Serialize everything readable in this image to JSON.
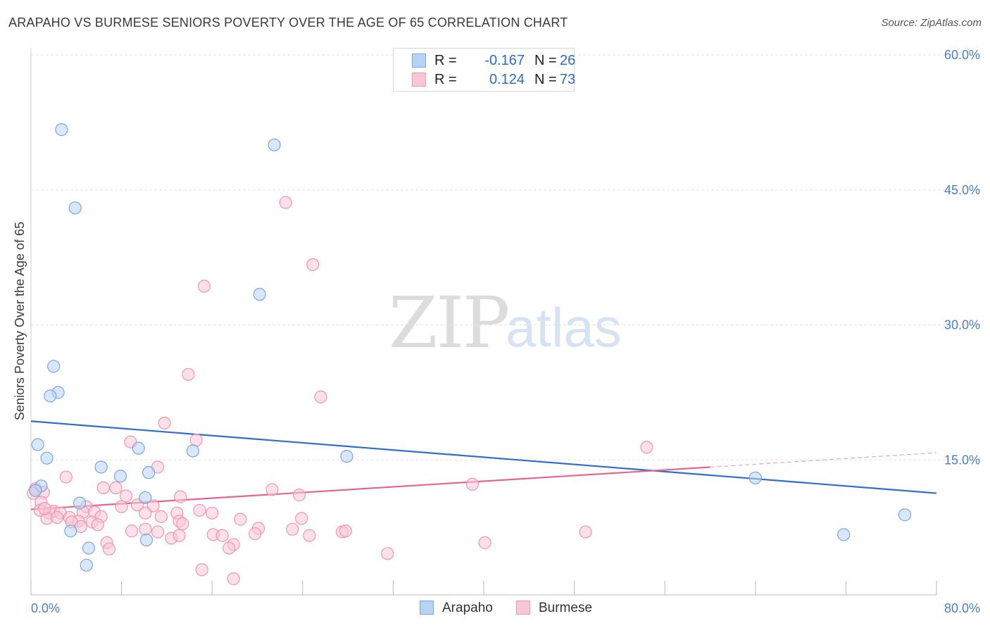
{
  "title": "ARAPAHO VS BURMESE SENIORS POVERTY OVER THE AGE OF 65 CORRELATION CHART",
  "source": "Source: ZipAtlas.com",
  "watermark": {
    "zip": "ZIP",
    "atlas": "atlas"
  },
  "legend": {
    "rows": [
      {
        "r_label": "R =",
        "r_value": "-0.167",
        "n_label": "N =",
        "n_value": "26",
        "color": "#b8d4f5",
        "border": "#7aa6df"
      },
      {
        "r_label": "R =",
        "r_value": "0.124",
        "n_label": "N =",
        "n_value": "73",
        "color": "#fbc6d6",
        "border": "#ee94b2"
      }
    ]
  },
  "bottom_legend": [
    {
      "name": "Arapaho",
      "color": "#b8d4f5",
      "border": "#7aa6df"
    },
    {
      "name": "Burmese",
      "color": "#fbc6d6",
      "border": "#ee94b2"
    }
  ],
  "chart_data": {
    "type": "scatter",
    "title": "ARAPAHO VS BURMESE SENIORS POVERTY OVER THE AGE OF 65 CORRELATION CHART",
    "xlabel": "",
    "ylabel": "Seniors Poverty Over the Age of 65",
    "xlim": [
      0,
      80
    ],
    "ylim": [
      0,
      60
    ],
    "x_tick_labels": [
      "0.0%",
      "80.0%"
    ],
    "y_ticks": [
      15,
      30,
      45,
      60
    ],
    "y_tick_labels": [
      "15.0%",
      "30.0%",
      "45.0%",
      "60.0%"
    ],
    "grid": true,
    "legend_position": "top-center",
    "series": [
      {
        "name": "Arapaho",
        "color": "#7aa6df",
        "fill": "#b8d4f5",
        "trend_color": "#2f6fca",
        "trend": {
          "x": [
            0,
            80
          ],
          "y": [
            19.3,
            11.3
          ]
        },
        "points": [
          [
            2.7,
            51.7
          ],
          [
            21.5,
            50.0
          ],
          [
            3.9,
            43.0
          ],
          [
            20.2,
            33.4
          ],
          [
            2.0,
            25.4
          ],
          [
            2.4,
            22.5
          ],
          [
            1.7,
            22.1
          ],
          [
            0.6,
            16.7
          ],
          [
            1.4,
            15.2
          ],
          [
            9.5,
            16.3
          ],
          [
            14.3,
            16.0
          ],
          [
            27.9,
            15.4
          ],
          [
            6.2,
            14.2
          ],
          [
            7.9,
            13.2
          ],
          [
            10.4,
            13.6
          ],
          [
            0.9,
            12.1
          ],
          [
            0.4,
            11.6
          ],
          [
            10.1,
            10.8
          ],
          [
            4.3,
            10.2
          ],
          [
            3.5,
            7.1
          ],
          [
            10.2,
            6.1
          ],
          [
            5.1,
            5.2
          ],
          [
            4.9,
            3.3
          ],
          [
            64.0,
            13.0
          ],
          [
            71.8,
            6.7
          ],
          [
            77.2,
            8.9
          ]
        ]
      },
      {
        "name": "Burmese",
        "color": "#ee94b2",
        "fill": "#fbc6d6",
        "trend_color": "#e2688f",
        "trend": {
          "x": [
            0,
            60
          ],
          "y": [
            9.5,
            14.2
          ]
        },
        "trend_extension": {
          "x": [
            60,
            80
          ],
          "y": [
            14.2,
            15.8
          ]
        },
        "points": [
          [
            22.5,
            43.6
          ],
          [
            24.9,
            36.7
          ],
          [
            15.3,
            34.3
          ],
          [
            13.9,
            24.5
          ],
          [
            25.6,
            22.0
          ],
          [
            11.8,
            19.1
          ],
          [
            14.6,
            17.2
          ],
          [
            8.8,
            17.0
          ],
          [
            54.4,
            16.4
          ],
          [
            11.2,
            14.2
          ],
          [
            3.1,
            13.1
          ],
          [
            0.4,
            11.8
          ],
          [
            1.1,
            11.4
          ],
          [
            6.4,
            11.9
          ],
          [
            7.5,
            11.9
          ],
          [
            21.3,
            11.7
          ],
          [
            8.4,
            11.0
          ],
          [
            13.2,
            10.9
          ],
          [
            23.7,
            11.1
          ],
          [
            39.0,
            12.3
          ],
          [
            0.9,
            10.3
          ],
          [
            8.0,
            9.8
          ],
          [
            9.4,
            10.0
          ],
          [
            10.8,
            9.9
          ],
          [
            4.9,
            9.8
          ],
          [
            0.8,
            9.4
          ],
          [
            1.6,
            9.1
          ],
          [
            2.0,
            9.3
          ],
          [
            2.6,
            9.1
          ],
          [
            4.6,
            9.2
          ],
          [
            5.6,
            9.2
          ],
          [
            10.1,
            9.1
          ],
          [
            12.9,
            9.1
          ],
          [
            14.9,
            9.4
          ],
          [
            16.0,
            9.1
          ],
          [
            1.4,
            8.5
          ],
          [
            2.3,
            8.6
          ],
          [
            3.4,
            8.6
          ],
          [
            4.2,
            8.2
          ],
          [
            5.4,
            8.1
          ],
          [
            6.2,
            8.7
          ],
          [
            11.5,
            8.7
          ],
          [
            13.1,
            8.2
          ],
          [
            18.5,
            8.4
          ],
          [
            23.9,
            8.5
          ],
          [
            3.6,
            8.1
          ],
          [
            4.4,
            7.6
          ],
          [
            5.9,
            7.8
          ],
          [
            13.4,
            7.9
          ],
          [
            8.9,
            7.1
          ],
          [
            10.1,
            7.3
          ],
          [
            11.2,
            7.0
          ],
          [
            20.1,
            7.4
          ],
          [
            23.1,
            7.3
          ],
          [
            27.5,
            7.0
          ],
          [
            27.8,
            7.1
          ],
          [
            49.0,
            7.0
          ],
          [
            16.1,
            6.7
          ],
          [
            16.9,
            6.6
          ],
          [
            19.8,
            6.8
          ],
          [
            12.4,
            6.3
          ],
          [
            13.1,
            6.6
          ],
          [
            24.6,
            6.6
          ],
          [
            6.7,
            5.8
          ],
          [
            17.9,
            5.6
          ],
          [
            17.5,
            5.2
          ],
          [
            6.9,
            5.1
          ],
          [
            40.1,
            5.8
          ],
          [
            31.5,
            4.6
          ],
          [
            15.1,
            2.8
          ],
          [
            17.9,
            1.8
          ],
          [
            0.2,
            11.3
          ],
          [
            1.2,
            9.6
          ]
        ]
      }
    ]
  }
}
